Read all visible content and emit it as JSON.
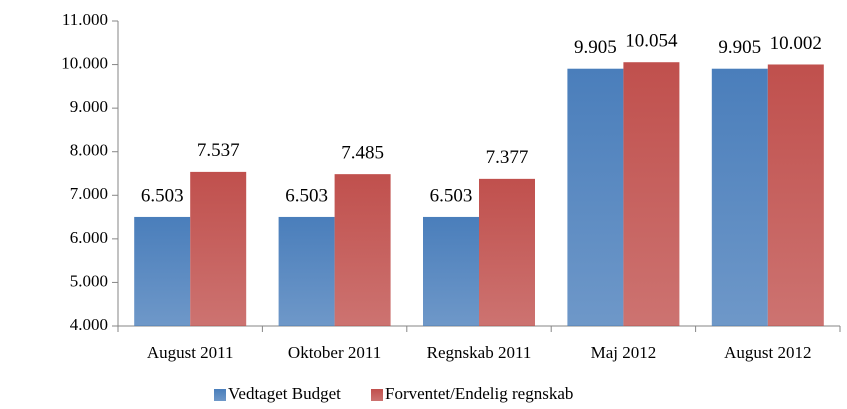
{
  "chart_data": {
    "type": "bar",
    "categories": [
      "August 2011",
      "Oktober 2011",
      "Regnskab 2011",
      "Maj 2012",
      "August 2012"
    ],
    "series": [
      {
        "name": "Vedtaget Budget",
        "color": "#4a7ebb",
        "values": [
          6503,
          6503,
          6503,
          9905,
          9905
        ],
        "value_labels": [
          "6.503",
          "6.503",
          "6.503",
          "9.905",
          "9.905"
        ]
      },
      {
        "name": "Forventet/Endelig regnskab",
        "color": "#c0504d",
        "values": [
          7537,
          7485,
          7377,
          10054,
          10002
        ],
        "value_labels": [
          "7.537",
          "7.485",
          "7.377",
          "10.054",
          "10.002"
        ]
      }
    ],
    "ylim": [
      4000,
      11000
    ],
    "yticks": [
      {
        "value": 4000,
        "label": "4.000"
      },
      {
        "value": 5000,
        "label": "5.000"
      },
      {
        "value": 6000,
        "label": "6.000"
      },
      {
        "value": 7000,
        "label": "7.000"
      },
      {
        "value": 8000,
        "label": "8.000"
      },
      {
        "value": 9000,
        "label": "9.000"
      },
      {
        "value": 10000,
        "label": "10.000"
      },
      {
        "value": 11000,
        "label": "11.000"
      }
    ],
    "grid": false,
    "legend": "bottom"
  }
}
